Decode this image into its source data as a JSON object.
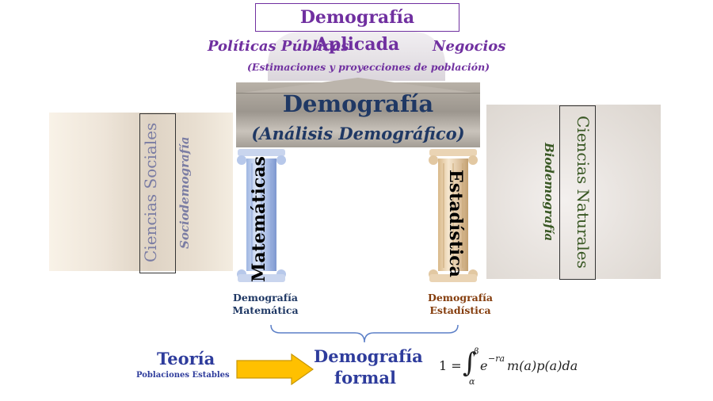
{
  "applied": {
    "title": "Demografía Aplicada",
    "policy": "Políticas Públicas",
    "business": "Negocios",
    "estimates": "(Estimaciones y proyecciones de población)"
  },
  "core": {
    "title": "Demografía",
    "subtitle": "(Análisis Demográfico)"
  },
  "pillars": {
    "left": "Matemáticas",
    "right": "Estadística"
  },
  "sides": {
    "social_sciences": "Ciencias Sociales",
    "sociodemography": "Sociodemografía",
    "natural_sciences": "Ciencias Naturales",
    "biodemography": "Biodemografía"
  },
  "branches": {
    "math_line1": "Demografía",
    "math_line2": "Matemática",
    "stat_line1": "Demografía",
    "stat_line2": "Estadística"
  },
  "bottom": {
    "theory": "Teoría",
    "stable": "Poblaciones Estables",
    "formal_line1": "Demografía",
    "formal_line2": "formal"
  },
  "equation": {
    "lhs": "1 =",
    "upper": "β",
    "lower": "α",
    "integrand": "e",
    "exponent": "−ra",
    "rest": "m(a)p(a)da"
  },
  "colors": {
    "purple": "#7030a0",
    "navy": "#1f3864",
    "blue": "#2e3c9c",
    "brown": "#843c0c",
    "green": "#385723",
    "arrow": "#ffc000"
  }
}
